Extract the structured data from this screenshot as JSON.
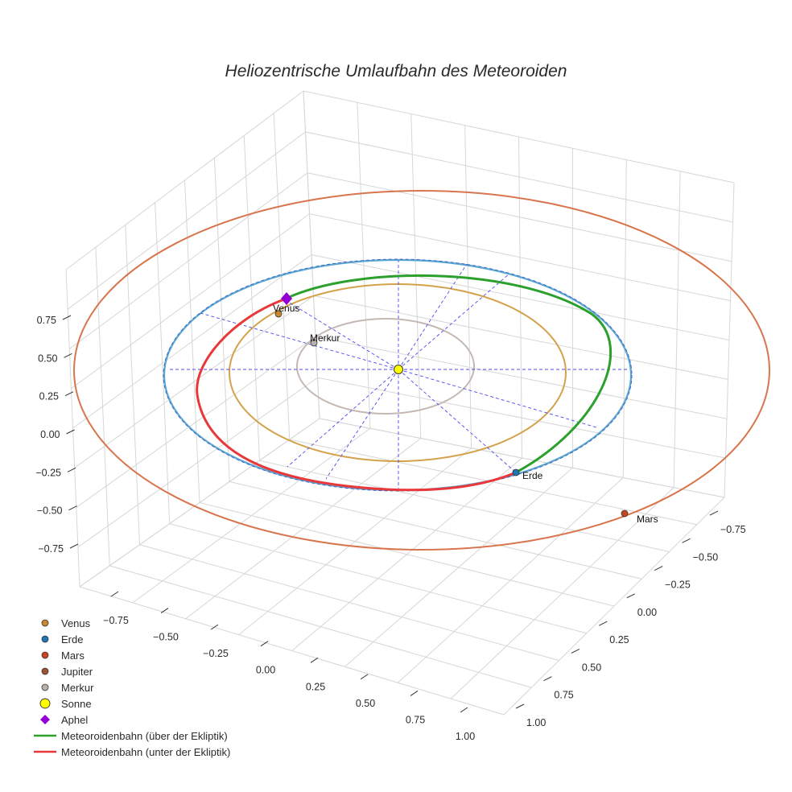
{
  "chart_data": {
    "type": "3d-line-scatter",
    "title": "Heliozentrische Umlaufbahn des Meteoroiden",
    "x_ticks": [
      "−0.75",
      "−0.50",
      "−0.25",
      "0.00",
      "0.25",
      "0.50",
      "0.75",
      "1.00"
    ],
    "y_ticks": [
      "−0.75",
      "−0.50",
      "−0.25",
      "0.00",
      "0.25",
      "0.50",
      "0.75",
      "1.00"
    ],
    "z_ticks": [
      "0.75",
      "0.50",
      "0.25",
      "0.00",
      "−0.25",
      "−0.50",
      "−0.75"
    ],
    "orbits": [
      {
        "name": "Merkur",
        "radius_au": 0.39,
        "color": "#c4b8b3"
      },
      {
        "name": "Venus",
        "radius_au": 0.72,
        "color": "#d4a24c"
      },
      {
        "name": "Erde",
        "radius_au": 1.0,
        "color": "#5aa7cf"
      },
      {
        "name": "Mars",
        "radius_au": 1.52,
        "color": "#d8754d"
      }
    ],
    "planets": [
      {
        "name": "Venus",
        "label": "Venus",
        "color": "#c8882e"
      },
      {
        "name": "Erde",
        "label": "Erde",
        "color": "#1f77b4"
      },
      {
        "name": "Mars",
        "label": "Mars",
        "color": "#c8461f"
      },
      {
        "name": "Merkur",
        "label": "Merkur",
        "color": "#b8b0ab"
      }
    ],
    "legend": [
      {
        "label": "Venus",
        "symbol": "circle",
        "color": "#c8882e"
      },
      {
        "label": "Erde",
        "symbol": "circle",
        "color": "#1f77b4"
      },
      {
        "label": "Mars",
        "symbol": "circle",
        "color": "#c8461f"
      },
      {
        "label": "Jupiter",
        "symbol": "circle",
        "color": "#a0522d"
      },
      {
        "label": "Merkur",
        "symbol": "circle",
        "color": "#b8b0ab"
      },
      {
        "label": "Sonne",
        "symbol": "circle-large",
        "color": "#ffff00"
      },
      {
        "label": "Aphel",
        "symbol": "diamond",
        "color": "#9400d3"
      },
      {
        "label": "Meteoroidenbahn (über der Ekliptik)",
        "symbol": "line",
        "color": "#2ca02c"
      },
      {
        "label": "Meteoroidenbahn (unter der Ekliptik)",
        "symbol": "line",
        "color": "#e8383a"
      }
    ],
    "meteoroid_above_color": "#2ca02c",
    "meteoroid_below_color": "#e8383a",
    "sun_color": "#ffff00",
    "aphel_color": "#9400d3",
    "grid": true,
    "legend_position": "bottom-left"
  }
}
